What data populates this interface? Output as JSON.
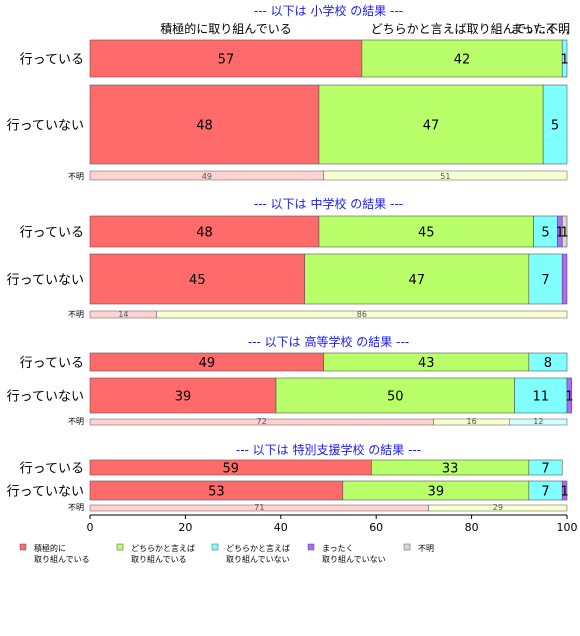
{
  "colors": {
    "background": "#ffffff",
    "panel_title": "#1a1aff",
    "text": "#000000",
    "bar_border": "#555555",
    "categories": [
      "#ff6a6a",
      "#b8ff6a",
      "#80ffff",
      "#a86aff",
      "#d8d8d8"
    ],
    "missing_row": [
      "#ffd2d2",
      "#faffd0",
      "#d2ffff"
    ]
  },
  "chart_data": {
    "type": "bar",
    "orientation": "horizontal",
    "stacked": true,
    "xlim": [
      0,
      100
    ],
    "xticks": [
      0,
      20,
      40,
      60,
      80,
      100
    ],
    "grid": false,
    "legend_position": "bottom",
    "category_labels": [
      "積極的に\n取り組んでいる",
      "どちらかと言えば\n取り組んでいる",
      "どちらかと言えば\n取り組んでいない",
      "まったく\n取り組んでいない",
      "不明"
    ],
    "header_labels": [
      "積極的に取り組んでいる",
      "どちらかと言えば取り組んでい...",
      "まったく...",
      "不明"
    ],
    "panels": [
      {
        "title": "--- 以下は 小学校 の結果 ---",
        "rows": [
          {
            "label": "行っている",
            "values": [
              57,
              42,
              1,
              0,
              0
            ],
            "labels": [
              "57",
              "42",
              "1",
              "",
              ""
            ]
          },
          {
            "label": "行っていない",
            "values": [
              48,
              47,
              5,
              0,
              0
            ],
            "labels": [
              "48",
              "47",
              "5",
              "",
              ""
            ]
          }
        ],
        "missing": {
          "label": "不明",
          "values": [
            49,
            51
          ],
          "labels": [
            "49",
            "51"
          ]
        }
      },
      {
        "title": "--- 以下は 中学校 の結果 ---",
        "rows": [
          {
            "label": "行っている",
            "values": [
              48,
              45,
              5,
              1,
              1
            ],
            "labels": [
              "48",
              "45",
              "5",
              "1",
              "1"
            ]
          },
          {
            "label": "行っていない",
            "values": [
              45,
              47,
              7,
              1,
              0
            ],
            "labels": [
              "45",
              "47",
              "7",
              "",
              ""
            ]
          }
        ],
        "missing": {
          "label": "不明",
          "values": [
            14,
            86
          ],
          "labels": [
            "14",
            "86"
          ]
        }
      },
      {
        "title": "--- 以下は 高等学校 の結果 ---",
        "rows": [
          {
            "label": "行っている",
            "values": [
              49,
              43,
              8,
              0,
              0
            ],
            "labels": [
              "49",
              "43",
              "8",
              "",
              ""
            ]
          },
          {
            "label": "行っていない",
            "values": [
              39,
              50,
              11,
              1,
              0
            ],
            "labels": [
              "39",
              "50",
              "11",
              "1",
              ""
            ]
          }
        ],
        "missing": {
          "label": "不明",
          "values": [
            72,
            16,
            12
          ],
          "labels": [
            "72",
            "16",
            "12"
          ]
        }
      },
      {
        "title": "--- 以下は 特別支援学校 の結果 ---",
        "rows": [
          {
            "label": "行っている",
            "values": [
              59,
              33,
              7,
              0,
              0
            ],
            "labels": [
              "59",
              "33",
              "7",
              "",
              ""
            ]
          },
          {
            "label": "行っていない",
            "values": [
              53,
              39,
              7,
              1,
              0
            ],
            "labels": [
              "53",
              "39",
              "7",
              "1",
              ""
            ]
          }
        ],
        "missing": {
          "label": "不明",
          "values": [
            71,
            29
          ],
          "labels": [
            "71",
            "29"
          ]
        }
      }
    ]
  }
}
